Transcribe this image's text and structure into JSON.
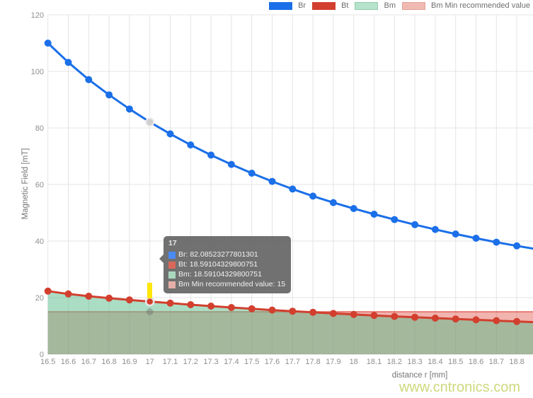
{
  "legend": {
    "items": [
      {
        "label": "Br",
        "type": "line",
        "fill": "#1b6fe8",
        "border": "#1b6fe8"
      },
      {
        "label": "Bt",
        "type": "line",
        "fill": "#d23f2e",
        "border": "#d23f2e"
      },
      {
        "label": "Bm",
        "type": "area",
        "fill": "#b5e3cb",
        "border": "#90ccab"
      },
      {
        "label": "Bm Min recommended value",
        "type": "area",
        "fill": "#f0bab3",
        "border": "#e2a099"
      }
    ]
  },
  "chart_data": {
    "type": "line",
    "title": "",
    "xlabel": "distance r [mm]",
    "ylabel": "Magnetic Field [mT]",
    "xlim": [
      16.5,
      18.88
    ],
    "ylim": [
      0,
      120
    ],
    "grid": true,
    "legend_position": "top-right",
    "x_ticks": [
      "16.5",
      "16.6",
      "16.7",
      "16.8",
      "16.9",
      "17",
      "17.1",
      "17.2",
      "17.3",
      "17.4",
      "17.5",
      "17.6",
      "17.7",
      "17.8",
      "17.9",
      "18",
      "18.1",
      "18.2",
      "18.3",
      "18.4",
      "18.5",
      "18.6",
      "18.7",
      "18.8"
    ],
    "y_ticks": [
      "120",
      "100",
      "80",
      "60",
      "40",
      "20",
      "0"
    ],
    "x": [
      16.5,
      16.6,
      16.7,
      16.8,
      16.9,
      17,
      17.1,
      17.2,
      17.3,
      17.4,
      17.5,
      17.6,
      17.7,
      17.8,
      17.9,
      18,
      18.1,
      18.2,
      18.3,
      18.4,
      18.5,
      18.6,
      18.7,
      18.8,
      18.9
    ],
    "series": [
      {
        "name": "Br",
        "type": "line",
        "color": "#1b6fe8",
        "values": [
          110,
          103.2,
          97.1,
          91.7,
          86.7,
          82.08523277801301,
          77.9,
          74.0,
          70.4,
          67.1,
          64.0,
          61.1,
          58.4,
          55.9,
          53.6,
          51.5,
          49.5,
          47.6,
          45.8,
          44.1,
          42.5,
          41.0,
          39.6,
          38.3,
          37.1
        ]
      },
      {
        "name": "Bt",
        "type": "line",
        "color": "#d23f2e",
        "values": [
          22.3,
          21.3,
          20.5,
          19.8,
          19.2,
          18.59104329800751,
          18.05,
          17.5,
          17.0,
          16.5,
          16.05,
          15.6,
          15.2,
          14.8,
          14.4,
          14.05,
          13.7,
          13.35,
          13.05,
          12.75,
          12.45,
          12.15,
          11.85,
          11.55,
          11.3
        ]
      },
      {
        "name": "Bm",
        "type": "area",
        "fill": "rgba(87,187,138,0.5)",
        "values": [
          22.3,
          21.3,
          20.5,
          19.8,
          19.2,
          18.59104329800751,
          18.05,
          17.5,
          17.0,
          16.5,
          16.05,
          15.6,
          15.2,
          14.8,
          14.4,
          14.05,
          13.7,
          13.35,
          13.05,
          12.75,
          12.45,
          12.15,
          11.85,
          11.55,
          11.3
        ]
      },
      {
        "name": "Bm Min recommended value",
        "type": "band",
        "fill": "rgba(219,68,55,0.40)",
        "border": "rgba(219,68,55,0.58)",
        "value": 15
      }
    ],
    "colors": {
      "grid": "#e4e4e4",
      "zero_line": "#cfcfcf",
      "tick_text": "#8f8f8f",
      "hover_marker": "#ffe70a"
    }
  },
  "hover": {
    "x_value": 17,
    "x_label": "17"
  },
  "tooltip": {
    "title": "17",
    "rows": [
      {
        "swatch": "#4a8af4",
        "text": "Br: 82.08523277801301"
      },
      {
        "swatch": "#d9685a",
        "text": "Bt: 18.59104329800751"
      },
      {
        "swatch": "#a9d8bf",
        "text": "Bm: 18.59104329800751"
      },
      {
        "swatch": "#e5afa8",
        "text": "Bm Min recommended value: 15"
      }
    ]
  },
  "watermark": {
    "text": "www.cntronics.com",
    "color": "#cdd97b"
  }
}
